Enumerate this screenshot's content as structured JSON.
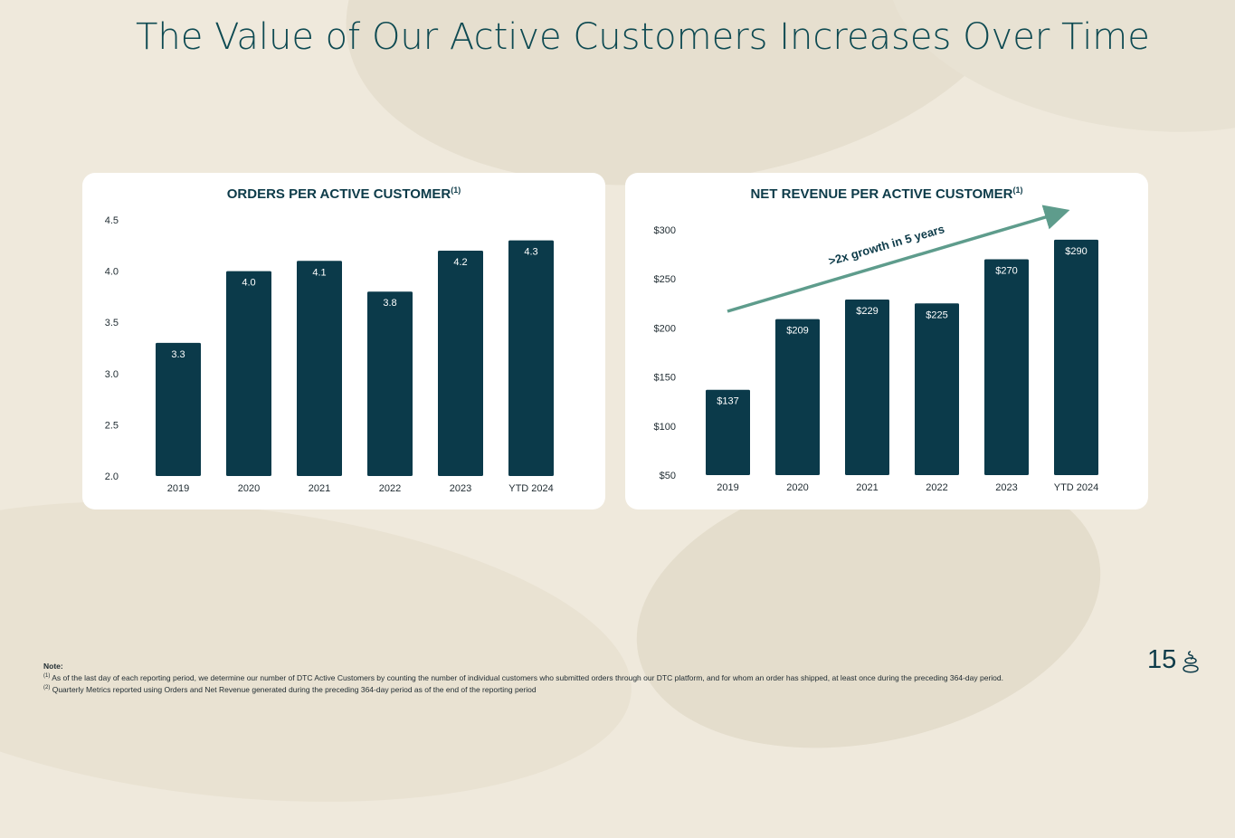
{
  "slide": {
    "title": "The Value of Our Active Customers Increases Over Time",
    "page_number": "15",
    "footnotes": {
      "heading": "Note:",
      "note1_marker": "(1)",
      "note1": "As of the last day of each reporting period, we determine our number of DTC Active Customers by counting the number of individual customers who submitted orders through our DTC platform, and for whom an order has shipped, at least once during the preceding 364-day period.",
      "note2_marker": "(2)",
      "note2": "Quarterly Metrics reported using Orders and Net Revenue generated during the preceding 364-day period as of the end of the reporting period"
    }
  },
  "colors": {
    "bar": "#0b3a4a",
    "title": "#0e4a52",
    "arrow": "#5e9c8c",
    "card": "#ffffff",
    "background": "#efe9dc"
  },
  "chart_data": [
    {
      "type": "bar",
      "title": "ORDERS PER ACTIVE CUSTOMER",
      "title_superscript": "(1)",
      "categories": [
        "2019",
        "2020",
        "2021",
        "2022",
        "2023",
        "YTD 2024"
      ],
      "values": [
        3.3,
        4.0,
        4.1,
        3.8,
        4.2,
        4.3
      ],
      "labels": [
        "3.3",
        "4.0",
        "4.1",
        "3.8",
        "4.2",
        "4.3"
      ],
      "ylim": [
        2.0,
        4.5
      ],
      "yticks": [
        2.0,
        2.5,
        3.0,
        3.5,
        4.0,
        4.5
      ],
      "ytick_labels": [
        "2.0",
        "2.5",
        "3.0",
        "3.5",
        "4.0",
        "4.5"
      ],
      "grid": false
    },
    {
      "type": "bar",
      "title": "NET REVENUE PER ACTIVE CUSTOMER",
      "title_superscript": "(1)",
      "categories": [
        "2019",
        "2020",
        "2021",
        "2022",
        "2023",
        "YTD 2024"
      ],
      "values": [
        137,
        209,
        229,
        225,
        270,
        290
      ],
      "labels": [
        "$137",
        "$209",
        "$229",
        "$225",
        "$270",
        "$290"
      ],
      "ylim": [
        50,
        300
      ],
      "yticks": [
        50,
        100,
        150,
        200,
        250,
        300
      ],
      "ytick_labels": [
        "$50",
        "$100",
        "$150",
        "$200",
        "$250",
        "$300"
      ],
      "grid": false,
      "annotation": ">2x growth in 5 years"
    }
  ]
}
